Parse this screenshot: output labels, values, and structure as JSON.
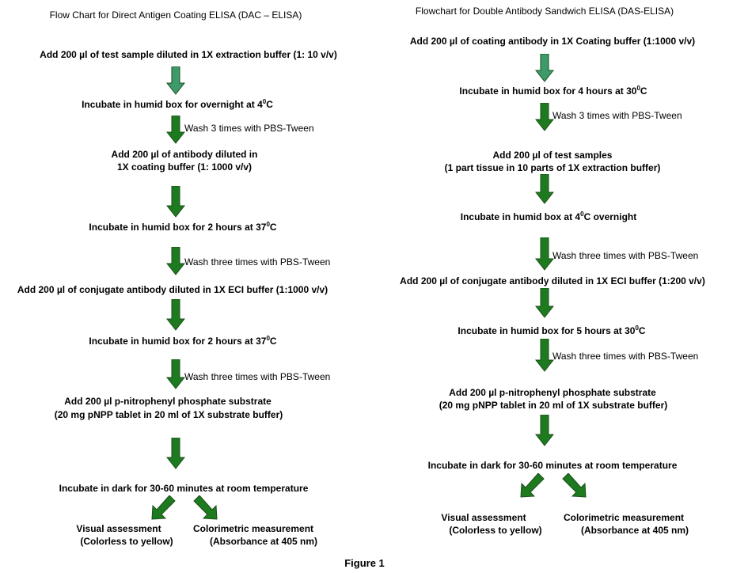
{
  "figure_label": "Figure 1",
  "left": {
    "title": "Flow Chart for Direct Antigen Coating ELISA (DAC – ELISA)",
    "steps": [
      "Add 200 µl of test sample diluted in 1X extraction buffer (1: 10 v/v)",
      "Incubate in humid box for overnight at 4",
      "Add 200 µl of antibody diluted in",
      "1X coating buffer (1: 1000 v/v)",
      "Incubate in humid box for 2 hours at 37",
      "Add 200 µl of conjugate antibody diluted in 1X ECI buffer (1:1000 v/v)",
      "Incubate in humid box for 2 hours at 37",
      "Add 200 µl p-nitrophenyl phosphate substrate",
      "(20 mg pNPP tablet in 20 ml of 1X substrate buffer)",
      "Incubate in dark for 30-60 minutes at room temperature"
    ],
    "washes": [
      "Wash 3 times with PBS-Tween",
      "Wash three times with PBS-Tween",
      "Wash three times with PBS-Tween"
    ],
    "outcomes": [
      {
        "line1": "Visual assessment",
        "line2": "(Colorless to yellow)"
      },
      {
        "line1": "Colorimetric measurement",
        "line2": "(Absorbance at 405 nm)"
      }
    ]
  },
  "right": {
    "title": "Flowchart for Double Antibody Sandwich ELISA (DAS-ELISA)",
    "steps": [
      "Add 200 µl of coating antibody in 1X Coating buffer (1:1000 v/v)",
      "Incubate in humid box for 4 hours at 30",
      "Add 200 µl of test samples",
      "(1 part tissue in 10 parts of 1X extraction buffer)",
      "Incubate in humid box at 4",
      "Add 200 µl of conjugate antibody diluted in 1X ECI buffer (1:200 v/v)",
      "Incubate in humid box for 5 hours at 30",
      "Add 200 µl p-nitrophenyl phosphate substrate",
      "(20 mg pNPP tablet in 20 ml of 1X substrate buffer)",
      "Incubate in dark for 30-60 minutes at room temperature"
    ],
    "washes": [
      "Wash 3 times with PBS-Tween",
      "Wash three times with PBS-Tween",
      "Wash three times with PBS-Tween"
    ],
    "outcomes": [
      {
        "line1": "Visual assessment",
        "line2": "(Colorless to yellow)"
      },
      {
        "line1": "Colorimetric measurement",
        "line2": "(Absorbance at 405 nm)"
      }
    ]
  },
  "units": {
    "degree": "0",
    "celsius": "C",
    "overnight": " overnight"
  },
  "colors": {
    "arrow_dark": "#1e7a1e",
    "arrow_light": "#3d9a6a",
    "arrow_outline": "#1a4d1a"
  }
}
